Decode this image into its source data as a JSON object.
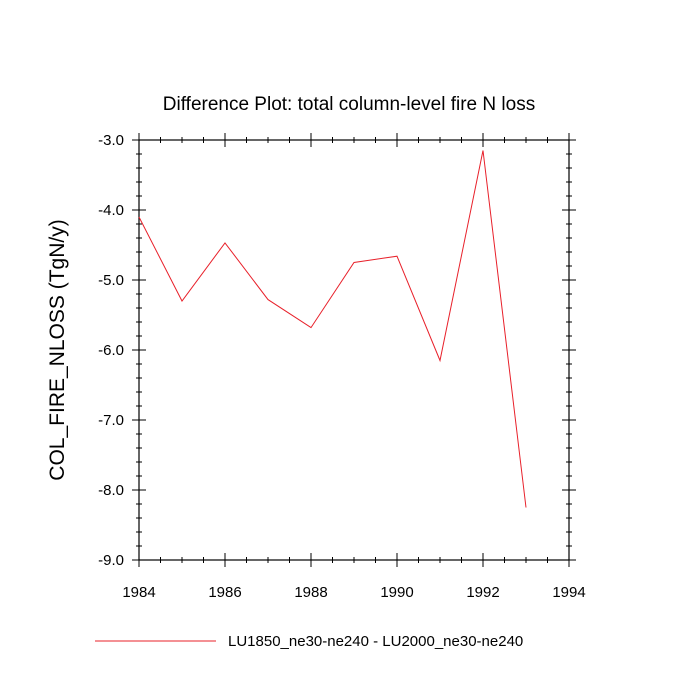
{
  "chart_data": {
    "type": "line",
    "title": "Difference Plot: total column-level fire N loss",
    "xlabel": "",
    "ylabel": "COL_FIRE_NLOSS  (TgN/y)",
    "xlim": [
      1984,
      1994
    ],
    "ylim": [
      -9.0,
      -3.0
    ],
    "xticks": [
      1984,
      1986,
      1988,
      1990,
      1992,
      1994
    ],
    "xtick_labels": [
      "1984",
      "1986",
      "1988",
      "1990",
      "1992",
      "1994"
    ],
    "yticks": [
      -9.0,
      -8.0,
      -7.0,
      -6.0,
      -5.0,
      -4.0,
      -3.0
    ],
    "ytick_labels": [
      "-9.0",
      "-8.0",
      "-7.0",
      "-6.0",
      "-5.0",
      "-4.0",
      "-3.0"
    ],
    "grid": false,
    "legend_position": "bottom",
    "series": [
      {
        "name": "LU1850_ne30-ne240 - LU2000_ne30-ne240",
        "color": "#e8202a",
        "x": [
          1984,
          1985,
          1986,
          1987,
          1988,
          1989,
          1990,
          1991,
          1992,
          1993
        ],
        "y": [
          -4.1,
          -5.3,
          -4.47,
          -5.28,
          -5.68,
          -4.75,
          -4.66,
          -6.15,
          -3.15,
          -8.25
        ]
      }
    ]
  }
}
